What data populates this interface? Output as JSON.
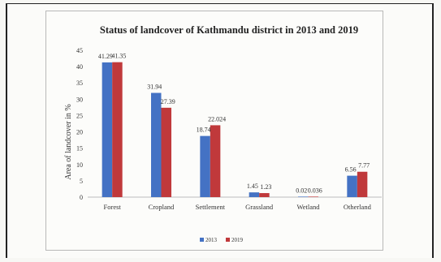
{
  "chart_data": {
    "type": "bar",
    "title": "Status of landcover of Kathmandu district in 2013 and 2019",
    "xlabel": "",
    "ylabel": "Area of landcover in %",
    "ylim": [
      0,
      45
    ],
    "yticks": [
      "0",
      "5",
      "10",
      "15",
      "20",
      "25",
      "30",
      "35",
      "40",
      "45"
    ],
    "categories": [
      "Forest",
      "Cropland",
      "Settlement",
      "Grassland",
      "Wetland",
      "Otherland"
    ],
    "series": [
      {
        "name": "2013",
        "color": "#4472c4",
        "values": [
          41.29,
          31.94,
          18.74,
          1.45,
          0.02,
          6.56
        ],
        "labels": [
          "41.29",
          "31.94",
          "18.74",
          "1.45",
          "0.02",
          "6.56"
        ]
      },
      {
        "name": "2019",
        "color": "#c0393b",
        "values": [
          41.35,
          27.39,
          22.024,
          1.23,
          0.036,
          7.77
        ],
        "labels": [
          "41.35",
          "27.39",
          "22.024",
          "1.23",
          "0.036",
          "7.77"
        ]
      }
    ],
    "grid": false,
    "legend": "bottom-center"
  }
}
